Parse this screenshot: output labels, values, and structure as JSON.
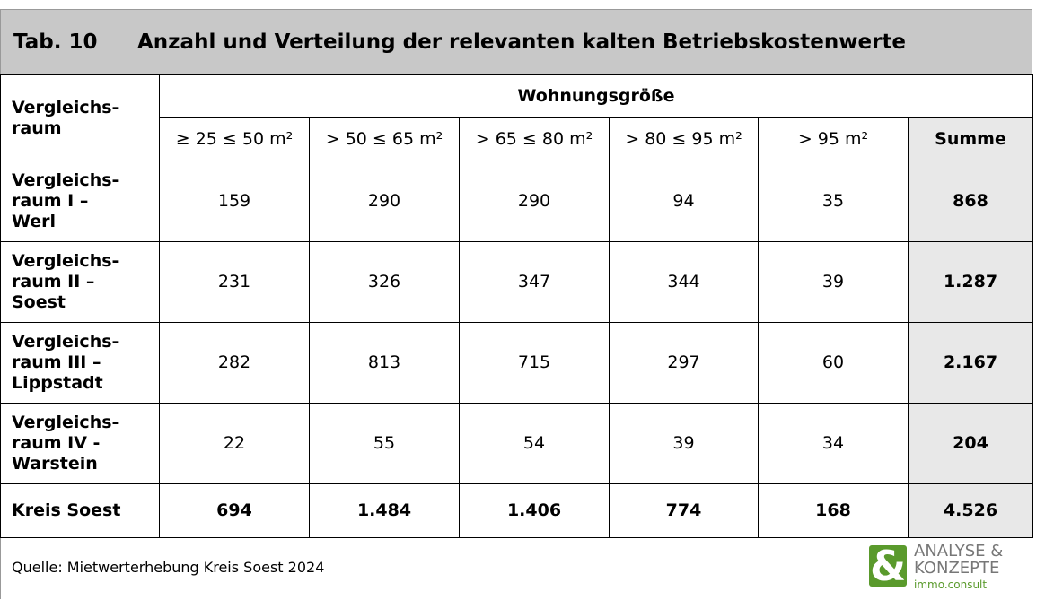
{
  "title": {
    "number": "Tab. 10",
    "text": "Anzahl und Verteilung der relevanten kalten Betriebskostenwerte"
  },
  "table": {
    "row_header": "Vergleichs-\nraum",
    "group_header": "Wohnungsgröße",
    "columns": [
      "≥ 25 ≤ 50 m²",
      "> 50 ≤ 65 m²",
      "> 65 ≤ 80 m²",
      "> 80 ≤ 95 m²",
      "> 95 m²",
      "Summe"
    ],
    "rows": [
      [
        "Vergleichs-\nraum I –\nWerl",
        "159",
        "290",
        "290",
        "94",
        "35",
        "868"
      ],
      [
        "Vergleichs-\nraum II –\nSoest",
        "231",
        "326",
        "347",
        "344",
        "39",
        "1.287"
      ],
      [
        "Vergleichs-\nraum III –\nLippstadt",
        "282",
        "813",
        "715",
        "297",
        "60",
        "2.167"
      ],
      [
        "Vergleichs-\nraum IV -\nWarstein",
        "22",
        "55",
        "54",
        "39",
        "34",
        "204"
      ],
      [
        "Kreis Soest",
        "694",
        "1.484",
        "1.406",
        "774",
        "168",
        "4.526"
      ]
    ]
  },
  "footer": {
    "source": "Quelle: Mietwerterhebung Kreis Soest 2024"
  },
  "logo": {
    "symbol": "&",
    "line1": "ANALYSE &",
    "line2": "KONZEPTE",
    "line3": "immo.consult"
  }
}
